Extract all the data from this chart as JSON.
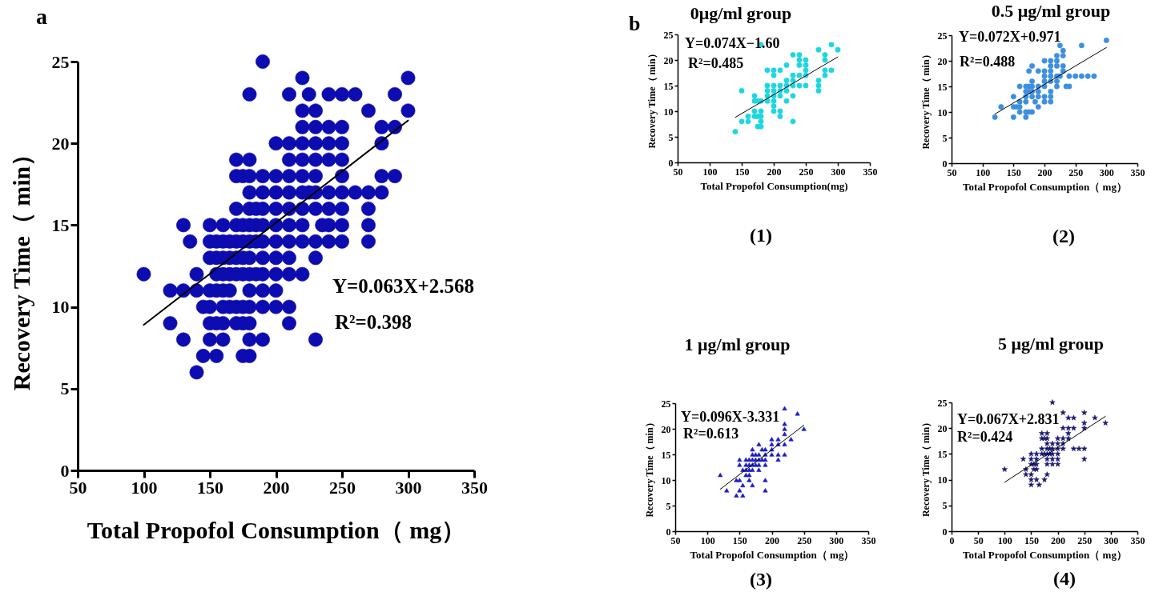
{
  "chart_data": [
    {
      "type": "scatter",
      "title": "a",
      "xlabel": "Total Propofol Consumption（ mg）",
      "ylabel": "Recovery Time（ min）",
      "xlim": [
        50,
        350
      ],
      "xticks": [
        50,
        100,
        150,
        200,
        250,
        300,
        350
      ],
      "ylim": [
        0,
        25
      ],
      "yticks": [
        0,
        5,
        10,
        15,
        20,
        25
      ],
      "annotations": [
        "Y=0.063X+2.568",
        "R²=0.398"
      ],
      "series": [
        {
          "type": "scatter",
          "marker": "circle",
          "color": "#0c0cb0",
          "x": [
            190,
            220,
            300,
            180,
            210,
            225,
            240,
            250,
            260,
            290,
            220,
            230,
            270,
            300,
            220,
            230,
            240,
            250,
            280,
            290,
            200,
            210,
            220,
            230,
            240,
            250,
            280,
            170,
            180,
            210,
            220,
            230,
            240,
            250,
            170,
            175,
            180,
            190,
            200,
            210,
            220,
            230,
            250,
            280,
            290,
            180,
            190,
            200,
            210,
            220,
            225,
            230,
            240,
            250,
            260,
            270,
            280,
            170,
            180,
            185,
            190,
            200,
            210,
            220,
            230,
            240,
            250,
            270,
            130,
            150,
            160,
            170,
            175,
            180,
            185,
            190,
            200,
            210,
            220,
            235,
            240,
            250,
            270,
            135,
            150,
            155,
            160,
            165,
            170,
            175,
            180,
            185,
            190,
            200,
            210,
            220,
            230,
            240,
            250,
            270,
            150,
            155,
            160,
            165,
            170,
            175,
            180,
            190,
            200,
            210,
            230,
            100,
            140,
            155,
            160,
            165,
            170,
            175,
            180,
            185,
            190,
            200,
            210,
            220,
            120,
            130,
            140,
            150,
            155,
            160,
            165,
            180,
            190,
            200,
            145,
            150,
            160,
            165,
            170,
            175,
            180,
            190,
            200,
            210,
            120,
            150,
            155,
            160,
            170,
            175,
            180,
            210,
            130,
            150,
            160,
            180,
            190,
            230,
            145,
            155,
            175,
            180,
            140
          ],
          "values": [
            25,
            24,
            24,
            23,
            23,
            23,
            23,
            23,
            23,
            23,
            22,
            22,
            22,
            22,
            21,
            21,
            21,
            21,
            21,
            21,
            20,
            20,
            20,
            20,
            20,
            20,
            20,
            19,
            19,
            19,
            19,
            19,
            19,
            19,
            18,
            18,
            18,
            18,
            18,
            18,
            18,
            18,
            18,
            18,
            18,
            17,
            17,
            17,
            17,
            17,
            17,
            17,
            17,
            17,
            17,
            17,
            17,
            16,
            16,
            16,
            16,
            16,
            16,
            16,
            16,
            16,
            16,
            16,
            15,
            15,
            15,
            15,
            15,
            15,
            15,
            15,
            15,
            15,
            15,
            15,
            15,
            15,
            15,
            14,
            14,
            14,
            14,
            14,
            14,
            14,
            14,
            14,
            14,
            14,
            14,
            14,
            14,
            14,
            14,
            14,
            13,
            13,
            13,
            13,
            13,
            13,
            13,
            13,
            13,
            13,
            13,
            12,
            12,
            12,
            12,
            12,
            12,
            12,
            12,
            12,
            12,
            12,
            12,
            12,
            11,
            11,
            11,
            11,
            11,
            11,
            11,
            11,
            11,
            11,
            10,
            10,
            10,
            10,
            10,
            10,
            10,
            10,
            10,
            10,
            9,
            9,
            9,
            9,
            9,
            9,
            9,
            9,
            8,
            8,
            8,
            8,
            8,
            8,
            7,
            7,
            7,
            7,
            6
          ]
        },
        {
          "type": "line",
          "color": "#000000",
          "x": [
            100,
            300
          ],
          "values": [
            8.9,
            21.4
          ]
        }
      ]
    },
    {
      "type": "scatter",
      "title": "0μg/ml group",
      "xlabel": "Total Propofol Consumption(mg)",
      "ylabel": "Recovery Time（ min）",
      "xlim": [
        50,
        350
      ],
      "xticks": [
        50,
        100,
        150,
        200,
        250,
        300,
        350
      ],
      "ylim": [
        0,
        25
      ],
      "yticks": [
        0,
        5,
        10,
        15,
        20,
        25
      ],
      "annotations": [
        "b",
        "Y=0.074X−1.60",
        "R²=0.485",
        "(1)"
      ],
      "series": [
        {
          "type": "scatter",
          "marker": "circle",
          "color": "#1fd6e0",
          "x": [
            140,
            150,
            150,
            160,
            160,
            170,
            170,
            170,
            170,
            175,
            175,
            175,
            180,
            180,
            180,
            180,
            180,
            180,
            190,
            190,
            190,
            190,
            190,
            200,
            200,
            200,
            200,
            200,
            200,
            200,
            200,
            210,
            210,
            210,
            210,
            210,
            210,
            220,
            220,
            220,
            220,
            220,
            230,
            230,
            230,
            230,
            230,
            230,
            240,
            240,
            240,
            240,
            240,
            250,
            250,
            250,
            250,
            250,
            270,
            270,
            270,
            270,
            280,
            280,
            280,
            280,
            290,
            290,
            300
          ],
          "values": [
            6,
            14,
            8,
            9,
            8,
            13,
            12,
            10,
            9,
            12,
            9,
            7,
            23,
            12,
            10,
            9,
            8,
            7,
            18,
            15,
            14,
            13,
            12,
            18,
            17,
            15,
            14,
            13,
            12,
            11,
            10,
            18,
            15,
            14,
            13,
            10,
            9,
            19,
            16,
            15,
            14,
            12,
            21,
            17,
            16,
            15,
            13,
            8,
            21,
            20,
            19,
            17,
            15,
            20,
            19,
            18,
            17,
            15,
            22,
            16,
            15,
            14,
            21,
            20,
            18,
            17,
            23,
            18,
            22
          ]
        },
        {
          "type": "line",
          "color": "#000000",
          "x": [
            140,
            300
          ],
          "values": [
            8.8,
            20.6
          ]
        }
      ]
    },
    {
      "type": "scatter",
      "title": "0.5 μg/ml group",
      "xlabel": "Total Propofol Consumption（ mg）",
      "ylabel": "Recovery Time（ min）",
      "xlim": [
        50,
        350
      ],
      "xticks": [
        50,
        100,
        150,
        200,
        250,
        300,
        350
      ],
      "ylim": [
        0,
        25
      ],
      "yticks": [
        0,
        5,
        10,
        15,
        20,
        25
      ],
      "annotations": [
        "Y=0.072X+0.971",
        "R²=0.488",
        "(2)"
      ],
      "series": [
        {
          "type": "scatter",
          "marker": "circle",
          "color": "#3d8fe0",
          "x": [
            120,
            130,
            150,
            150,
            150,
            155,
            160,
            160,
            160,
            160,
            170,
            170,
            170,
            170,
            170,
            170,
            175,
            175,
            175,
            175,
            180,
            180,
            180,
            180,
            180,
            180,
            185,
            190,
            190,
            190,
            190,
            190,
            200,
            200,
            200,
            200,
            200,
            200,
            200,
            210,
            210,
            210,
            210,
            210,
            210,
            210,
            210,
            220,
            220,
            220,
            220,
            220,
            220,
            225,
            225,
            230,
            230,
            230,
            230,
            235,
            240,
            240,
            250,
            260,
            260,
            270,
            280,
            300
          ],
          "values": [
            9,
            11,
            13,
            11,
            9,
            11,
            15,
            12,
            11,
            10,
            15,
            14,
            13,
            12,
            10,
            9,
            18,
            15,
            14,
            10,
            19,
            16,
            15,
            14,
            13,
            10,
            12,
            18,
            15,
            14,
            13,
            11,
            20,
            18,
            17,
            16,
            15,
            13,
            12,
            20,
            19,
            18,
            17,
            16,
            14,
            13,
            12,
            21,
            20,
            19,
            17,
            16,
            15,
            23,
            17,
            22,
            21,
            19,
            18,
            15,
            17,
            15,
            17,
            23,
            17,
            17,
            17,
            24
          ]
        },
        {
          "type": "line",
          "color": "#000000",
          "x": [
            120,
            300
          ],
          "values": [
            9.6,
            22.6
          ]
        }
      ]
    },
    {
      "type": "scatter",
      "title": "1 μg/ml group",
      "xlabel": "Total Propofol Consumption（ mg）",
      "ylabel": "Recovery Time（ min）",
      "xlim": [
        50,
        350
      ],
      "xticks": [
        50,
        100,
        150,
        200,
        250,
        300,
        350
      ],
      "ylim": [
        0,
        25
      ],
      "yticks": [
        0,
        5,
        10,
        15,
        20,
        25
      ],
      "annotations": [
        "Y=0.096X-3.331",
        "R²=0.613",
        "(3)"
      ],
      "series": [
        {
          "type": "scatter",
          "marker": "triangle",
          "color": "#1c1cc8",
          "x": [
            120,
            130,
            145,
            145,
            150,
            150,
            150,
            150,
            155,
            155,
            155,
            160,
            160,
            160,
            160,
            165,
            165,
            165,
            165,
            165,
            170,
            170,
            170,
            170,
            170,
            170,
            175,
            175,
            175,
            180,
            180,
            180,
            180,
            180,
            185,
            185,
            190,
            190,
            190,
            190,
            190,
            190,
            200,
            200,
            200,
            200,
            210,
            210,
            210,
            210,
            220,
            220,
            220,
            220,
            220,
            220,
            230,
            240,
            250
          ],
          "values": [
            11,
            8,
            10,
            7,
            14,
            13,
            10,
            8,
            12,
            9,
            7,
            14,
            13,
            12,
            11,
            14,
            13,
            12,
            11,
            10,
            16,
            15,
            14,
            13,
            12,
            9,
            15,
            14,
            13,
            17,
            15,
            14,
            13,
            12,
            16,
            14,
            16,
            15,
            14,
            13,
            10,
            8,
            18,
            17,
            16,
            15,
            18,
            17,
            15,
            14,
            24,
            21,
            20,
            19,
            17,
            15,
            18,
            23,
            20
          ]
        },
        {
          "type": "line",
          "color": "#000000",
          "x": [
            120,
            250
          ],
          "values": [
            8.2,
            20.7
          ]
        }
      ]
    },
    {
      "type": "scatter",
      "title": "5 μg/ml group",
      "xlabel": "Total Propofol Consumption（ mg）",
      "ylabel": "Recovery Time（ min）",
      "xlim": [
        0,
        350
      ],
      "xticks": [
        0,
        50,
        100,
        150,
        200,
        250,
        300,
        350
      ],
      "ylim": [
        0,
        25
      ],
      "yticks": [
        0,
        5,
        10,
        15,
        20,
        25
      ],
      "annotations": [
        "Y=0.067X+2.831",
        "R²=0.424",
        "(4)"
      ],
      "series": [
        {
          "type": "scatter",
          "marker": "star",
          "color": "#1a1a70",
          "x": [
            100,
            135,
            140,
            140,
            150,
            150,
            150,
            150,
            150,
            150,
            155,
            155,
            160,
            160,
            160,
            160,
            160,
            165,
            170,
            170,
            170,
            170,
            175,
            175,
            175,
            180,
            180,
            180,
            180,
            180,
            180,
            180,
            180,
            185,
            185,
            190,
            190,
            190,
            190,
            190,
            190,
            200,
            200,
            200,
            200,
            200,
            200,
            210,
            210,
            210,
            210,
            210,
            220,
            220,
            220,
            220,
            230,
            230,
            230,
            240,
            250,
            250,
            250,
            250,
            250,
            270,
            290
          ],
          "values": [
            12,
            14,
            12,
            11,
            15,
            14,
            13,
            11,
            10,
            9,
            13,
            12,
            15,
            14,
            13,
            12,
            10,
            9,
            19,
            18,
            16,
            15,
            18,
            15,
            10,
            19,
            18,
            17,
            16,
            15,
            14,
            13,
            11,
            16,
            15,
            25,
            17,
            16,
            15,
            14,
            13,
            18,
            17,
            16,
            15,
            14,
            13,
            23,
            20,
            18,
            17,
            16,
            22,
            20,
            19,
            18,
            22,
            20,
            16,
            16,
            23,
            21,
            20,
            16,
            14,
            22,
            21
          ]
        },
        {
          "type": "line",
          "color": "#000000",
          "x": [
            100,
            290
          ],
          "values": [
            9.5,
            22.3
          ]
        }
      ]
    }
  ]
}
